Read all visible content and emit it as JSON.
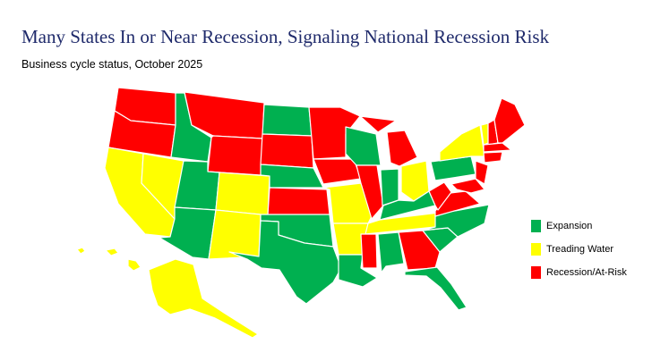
{
  "title": "Many States In or Near Recession, Signaling National Recession Risk",
  "subtitle": "Business cycle status, October 2025",
  "legend": [
    {
      "label": "Expansion",
      "color": "#00b050"
    },
    {
      "label": "Treading Water",
      "color": "#ffff00"
    },
    {
      "label": "Recession/At-Risk",
      "color": "#ff0000"
    }
  ]
}
